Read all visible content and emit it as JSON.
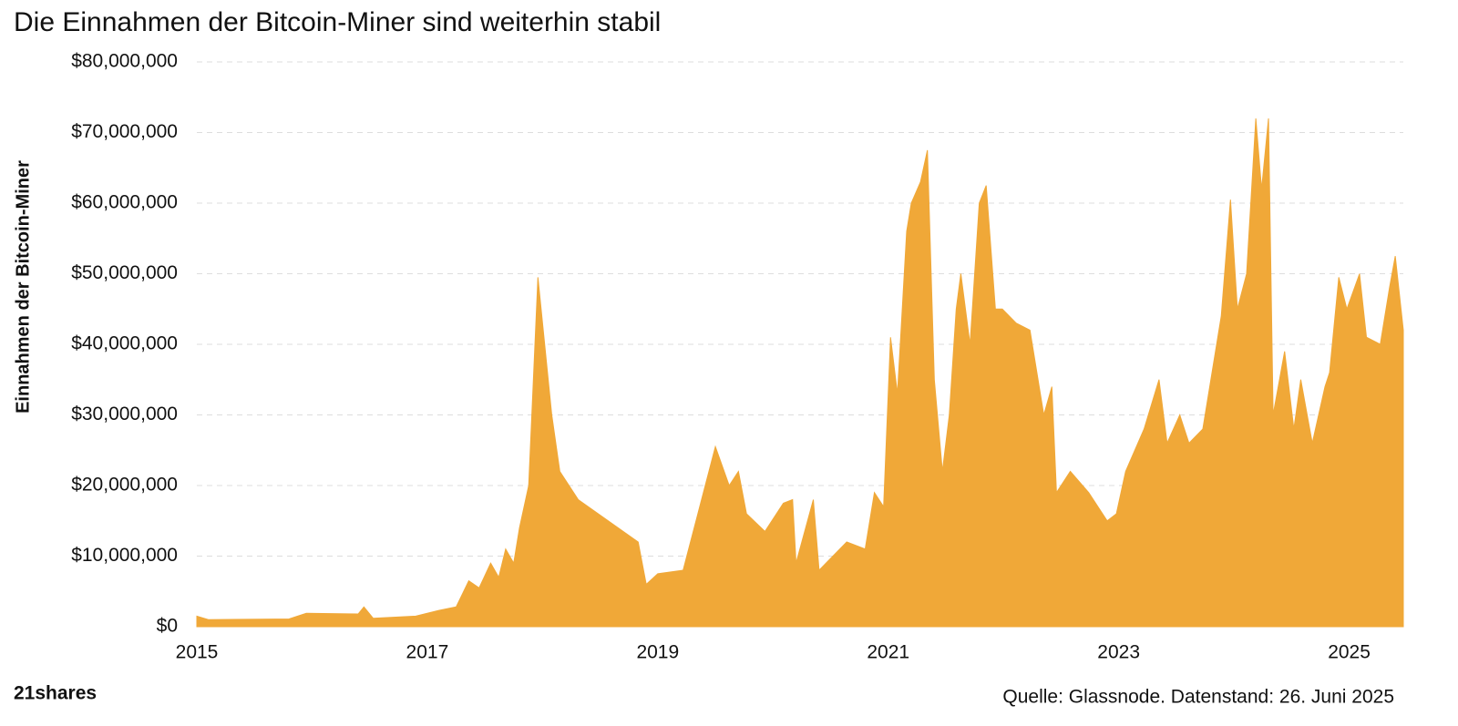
{
  "chart_data": {
    "type": "area",
    "title": "Die Einnahmen der Bitcoin-Miner sind weiterhin stabil",
    "y_label": "Einnahmen der Bitcoin-Miner",
    "source": "Quelle: Glassnode. Datenstand: 26. Juni 2025",
    "logo": "21shares",
    "color": "#f0a838",
    "grid": true,
    "xlim": [
      2015,
      2025.47
    ],
    "xticks": [
      2015,
      2017,
      2019,
      2021,
      2023,
      2025
    ],
    "ylim": [
      0,
      80000000
    ],
    "yticks": [
      {
        "value": 0,
        "label": "$0"
      },
      {
        "value": 10000000,
        "label": "$10,000,000"
      },
      {
        "value": 20000000,
        "label": "$20,000,000"
      },
      {
        "value": 30000000,
        "label": "$30,000,000"
      },
      {
        "value": 40000000,
        "label": "$40,000,000"
      },
      {
        "value": 50000000,
        "label": "$50,000,000"
      },
      {
        "value": 60000000,
        "label": "$60,000,000"
      },
      {
        "value": 70000000,
        "label": "$70,000,000"
      },
      {
        "value": 80000000,
        "label": "$80,000,000"
      }
    ],
    "x": [
      2015,
      2015.1,
      2015.8,
      2015.95,
      2016.4,
      2016.45,
      2016.53,
      2016.9,
      2017.1,
      2017.25,
      2017.36,
      2017.45,
      2017.55,
      2017.62,
      2017.68,
      2017.75,
      2017.8,
      2017.88,
      2017.96,
      2018.08,
      2018.15,
      2018.31,
      2018.83,
      2018.9,
      2019.0,
      2019.22,
      2019.38,
      2019.5,
      2019.62,
      2019.7,
      2019.77,
      2019.93,
      2020.09,
      2020.17,
      2020.2,
      2020.35,
      2020.4,
      2020.64,
      2020.8,
      2020.88,
      2020.96,
      2021.02,
      2021.08,
      2021.16,
      2021.2,
      2021.28,
      2021.34,
      2021.4,
      2021.47,
      2021.53,
      2021.59,
      2021.63,
      2021.71,
      2021.79,
      2021.85,
      2021.93,
      2021.99,
      2022.11,
      2022.23,
      2022.35,
      2022.42,
      2022.46,
      2022.58,
      2022.74,
      2022.9,
      2022.98,
      2023.06,
      2023.22,
      2023.35,
      2023.42,
      2023.53,
      2023.61,
      2023.73,
      2023.89,
      2023.97,
      2024.03,
      2024.11,
      2024.19,
      2024.24,
      2024.3,
      2024.34,
      2024.44,
      2024.52,
      2024.58,
      2024.68,
      2024.79,
      2024.83,
      2024.91,
      2024.98,
      2025.09,
      2025.15,
      2025.27,
      2025.35,
      2025.4,
      2025.47
    ],
    "values": [
      1500000,
      1000000,
      1100000,
      1900000,
      1800000,
      2800000,
      1200000,
      1500000,
      2300000,
      2800000,
      6500000,
      5500000,
      9000000,
      7000000,
      11000000,
      9000000,
      14000000,
      20000000,
      49500000,
      30000000,
      22000000,
      18000000,
      12000000,
      6000000,
      7500000,
      8000000,
      18000000,
      25500000,
      20000000,
      22000000,
      16000000,
      13500000,
      17500000,
      18000000,
      9000000,
      18000000,
      8000000,
      12000000,
      11000000,
      19000000,
      17000000,
      41000000,
      33000000,
      56000000,
      60000000,
      63000000,
      67500000,
      35000000,
      22000000,
      30000000,
      45000000,
      50000000,
      40000000,
      60000000,
      62500000,
      45000000,
      45000000,
      43000000,
      42000000,
      30000000,
      34000000,
      19000000,
      22000000,
      19000000,
      15000000,
      16000000,
      22000000,
      28000000,
      35000000,
      26000000,
      30000000,
      26000000,
      28000000,
      44000000,
      60500000,
      45000000,
      50000000,
      72000000,
      62000000,
      72000000,
      30000000,
      39000000,
      28000000,
      35000000,
      26000000,
      34000000,
      36000000,
      49500000,
      45000000,
      50000000,
      41000000,
      40000000,
      48000000,
      52500000,
      42000000
    ]
  }
}
